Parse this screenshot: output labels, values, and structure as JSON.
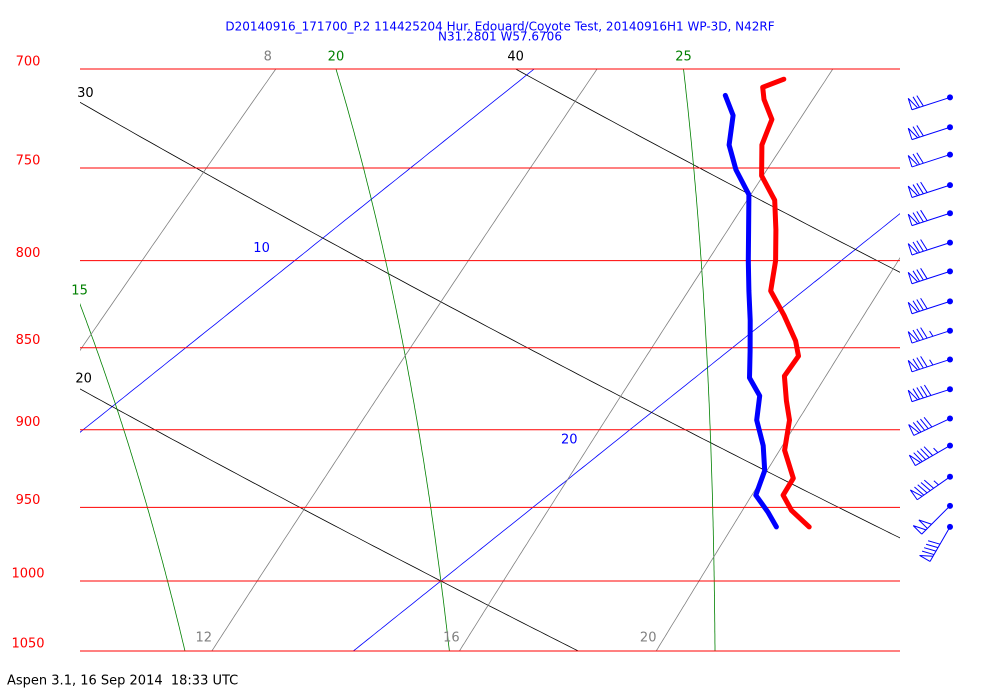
{
  "footer": "Aspen 3.1, 16 Sep 2014  18:33 UTC",
  "chart_data": {
    "type": "skewt",
    "title": "D20140916_171700_P.2 114425204 Hur. Edouard/Coyote Test, 20140916H1 WP-3D, N42RF",
    "subtitle": "N31.2801 W57.6706",
    "ylim": [
      700,
      1050
    ],
    "yticks": [
      700,
      750,
      800,
      850,
      900,
      950,
      1000,
      1050
    ],
    "ylog": true,
    "xlim": [
      15,
      30
    ],
    "isobar_color": "#ff0000",
    "isotherms": {
      "color": "#0000ff",
      "values": [
        10,
        20
      ]
    },
    "dry_adiabats": {
      "color": "#000000",
      "values": [
        20,
        30,
        40
      ]
    },
    "moist_adiabats": {
      "color": "#008000",
      "values": [
        15,
        20,
        25
      ]
    },
    "mixing_ratios": {
      "color": "#808080",
      "values": [
        8,
        12,
        16,
        20
      ]
    },
    "series": [
      {
        "color": "#ff0000",
        "pressure": [
          705,
          709,
          715,
          725,
          738,
          754,
          767,
          783,
          800,
          817,
          831,
          846,
          855,
          867,
          882,
          894,
          913,
          931,
          942,
          952,
          963
        ],
        "values": [
          14.8,
          14.6,
          14.9,
          15.5,
          15.9,
          16.6,
          17.4,
          18.1,
          18.8,
          19.4,
          20.2,
          21.0,
          21.4,
          21.6,
          22.2,
          22.7,
          23.3,
          24.1,
          24.3,
          24.8,
          25.5
        ]
      },
      {
        "color": "#0000ff",
        "pressure": [
          713,
          723,
          738,
          751,
          764,
          783,
          800,
          817,
          834,
          852,
          868,
          879,
          894,
          910,
          926,
          942,
          953,
          963
        ],
        "values": [
          14.1,
          14.7,
          15.3,
          16.0,
          16.8,
          17.6,
          18.3,
          19.0,
          19.7,
          20.4,
          21.0,
          21.6,
          22.1,
          22.8,
          23.4,
          23.8,
          24.4,
          24.9
        ]
      }
    ],
    "winds": {
      "color": "#0000ff",
      "pressure": [
        714,
        729,
        743,
        759,
        774,
        790,
        806,
        823,
        840,
        857,
        875,
        893,
        910,
        930,
        949,
        963
      ],
      "direction": [
        252,
        252,
        252,
        252,
        252,
        252,
        252,
        252,
        252,
        252,
        252,
        245,
        240,
        235,
        225,
        210
      ],
      "speed": [
        70,
        70,
        70,
        80,
        80,
        80,
        80,
        80,
        85,
        85,
        90,
        90,
        95,
        95,
        100,
        90
      ]
    }
  }
}
